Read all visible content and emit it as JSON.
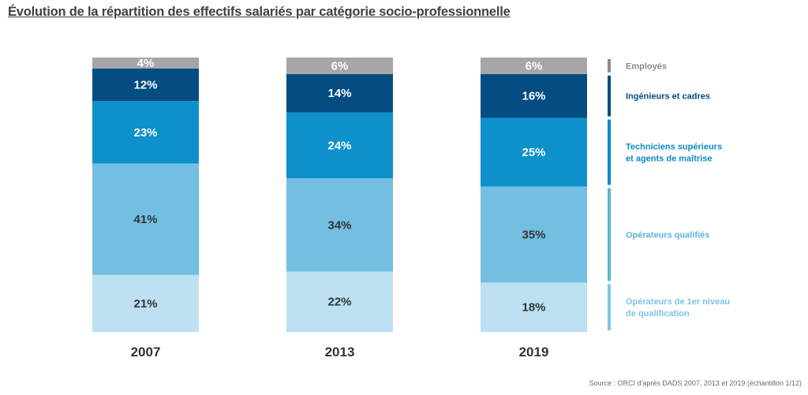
{
  "chart_data": {
    "type": "bar",
    "stacked": true,
    "title": "Évolution de la répartition des effectifs salariés par catégorie socio-professionnelle",
    "categories": [
      "2007",
      "2013",
      "2019"
    ],
    "unit": "%",
    "series": [
      {
        "name": "Opérateurs de 1er niveau de qualification",
        "legend_lines": [
          "Opérateurs de 1er niveau",
          "de qualification"
        ],
        "values": [
          21,
          22,
          18
        ],
        "color": "#bde1f2",
        "label_color": "#333333",
        "legend_color": "#7ec4e2"
      },
      {
        "name": "Opérateurs qualifiés",
        "legend_lines": [
          "Opérateurs qualifiés"
        ],
        "values": [
          41,
          34,
          35
        ],
        "color": "#73bfe2",
        "label_color": "#333333",
        "legend_color": "#5db4dc"
      },
      {
        "name": "Techniciens supérieurs et agents de maîtrise",
        "legend_lines": [
          "Techniciens supérieurs",
          "et agents de maîtrise"
        ],
        "values": [
          23,
          24,
          25
        ],
        "color": "#0e90cb",
        "label_color": "#ffffff",
        "legend_color": "#0e8ac5"
      },
      {
        "name": "Ingénieurs et cadres",
        "legend_lines": [
          "Ingénieurs et cadres"
        ],
        "values": [
          12,
          14,
          16
        ],
        "color": "#044d83",
        "label_color": "#ffffff",
        "legend_color": "#044d83"
      },
      {
        "name": "Employés",
        "legend_lines": [
          "Employés"
        ],
        "values": [
          4,
          6,
          6
        ],
        "color": "#a6a6a6",
        "label_color": "#ffffff",
        "legend_color": "#8c8c8c"
      }
    ],
    "legend_position": "right",
    "grid": false
  },
  "source": "Source : ORCI d'après DADS 2007, 2013 et 2019 (échantillon 1/12)"
}
